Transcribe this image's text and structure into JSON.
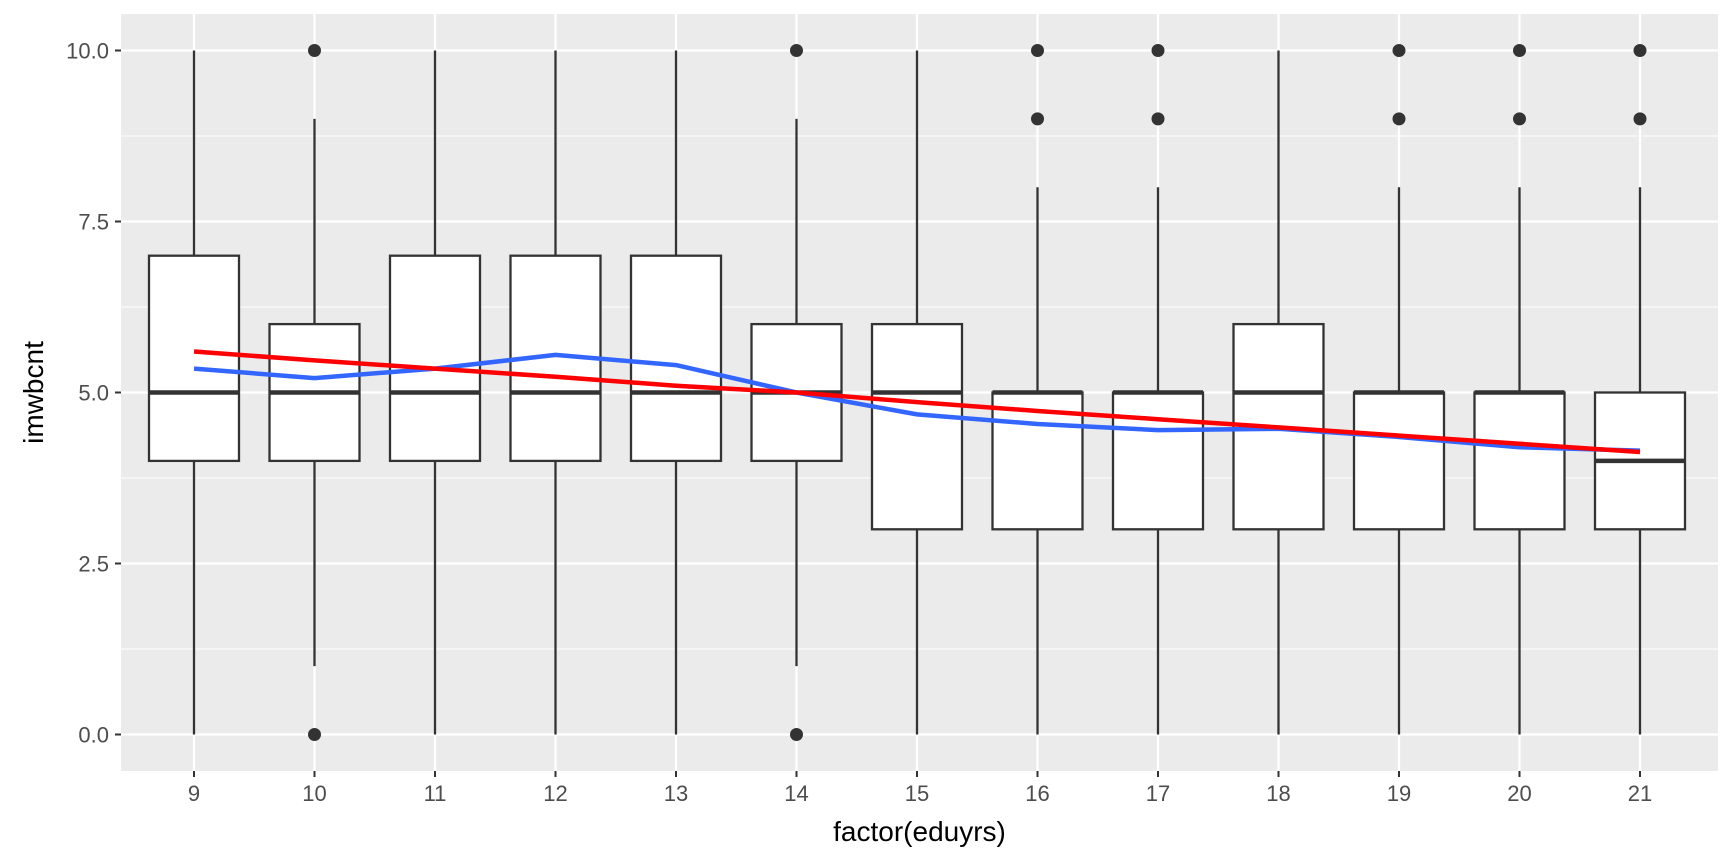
{
  "chart_data": {
    "type": "box",
    "xlabel": "factor(eduyrs)",
    "ylabel": "imwbcnt",
    "ylim": [
      -0.5,
      10.5
    ],
    "yticks": [
      {
        "value": 0,
        "label": "0.0"
      },
      {
        "value": 2.5,
        "label": "2.5"
      },
      {
        "value": 5,
        "label": "5.0"
      },
      {
        "value": 7.5,
        "label": "7.5"
      },
      {
        "value": 10,
        "label": "10.0"
      }
    ],
    "categories": [
      "9",
      "10",
      "11",
      "12",
      "13",
      "14",
      "15",
      "16",
      "17",
      "18",
      "19",
      "20",
      "21"
    ],
    "boxes": [
      {
        "category": "9",
        "lower_whisker": 0,
        "q1": 4,
        "median": 5,
        "q3": 7,
        "upper_whisker": 10,
        "outliers": []
      },
      {
        "category": "10",
        "lower_whisker": 1,
        "q1": 4,
        "median": 5,
        "q3": 6,
        "upper_whisker": 9,
        "outliers": [
          0,
          10
        ]
      },
      {
        "category": "11",
        "lower_whisker": 0,
        "q1": 4,
        "median": 5,
        "q3": 7,
        "upper_whisker": 10,
        "outliers": []
      },
      {
        "category": "12",
        "lower_whisker": 0,
        "q1": 4,
        "median": 5,
        "q3": 7,
        "upper_whisker": 10,
        "outliers": []
      },
      {
        "category": "13",
        "lower_whisker": 0,
        "q1": 4,
        "median": 5,
        "q3": 7,
        "upper_whisker": 10,
        "outliers": []
      },
      {
        "category": "14",
        "lower_whisker": 1,
        "q1": 4,
        "median": 5,
        "q3": 6,
        "upper_whisker": 9,
        "outliers": [
          0,
          10
        ]
      },
      {
        "category": "15",
        "lower_whisker": 0,
        "q1": 3,
        "median": 5,
        "q3": 6,
        "upper_whisker": 10,
        "outliers": []
      },
      {
        "category": "16",
        "lower_whisker": 0,
        "q1": 3,
        "median": 5,
        "q3": 5,
        "upper_whisker": 8,
        "outliers": [
          9,
          10
        ]
      },
      {
        "category": "17",
        "lower_whisker": 0,
        "q1": 3,
        "median": 5,
        "q3": 5,
        "upper_whisker": 8,
        "outliers": [
          9,
          10
        ]
      },
      {
        "category": "18",
        "lower_whisker": 0,
        "q1": 3,
        "median": 5,
        "q3": 6,
        "upper_whisker": 10,
        "outliers": []
      },
      {
        "category": "19",
        "lower_whisker": 0,
        "q1": 3,
        "median": 5,
        "q3": 5,
        "upper_whisker": 8,
        "outliers": [
          9,
          10
        ]
      },
      {
        "category": "20",
        "lower_whisker": 0,
        "q1": 3,
        "median": 5,
        "q3": 5,
        "upper_whisker": 8,
        "outliers": [
          9,
          10
        ]
      },
      {
        "category": "21",
        "lower_whisker": 0,
        "q1": 3,
        "median": 4,
        "q3": 5,
        "upper_whisker": 8,
        "outliers": [
          9,
          10
        ]
      }
    ],
    "lines": [
      {
        "color": "#3366ff",
        "values": [
          5.35,
          5.21,
          5.35,
          5.55,
          5.4,
          5.0,
          4.68,
          4.54,
          4.45,
          4.47,
          4.35,
          4.2,
          4.15
        ]
      },
      {
        "color": "#ff0000",
        "values": [
          5.6,
          5.47,
          5.35,
          5.23,
          5.1,
          5.0,
          4.86,
          4.73,
          4.61,
          4.49,
          4.37,
          4.25,
          4.13
        ]
      }
    ],
    "grid": true,
    "panel_background": "#ebebeb",
    "box_fill": "#ffffff",
    "box_stroke": "#333333",
    "outlier_color": "#333333"
  }
}
